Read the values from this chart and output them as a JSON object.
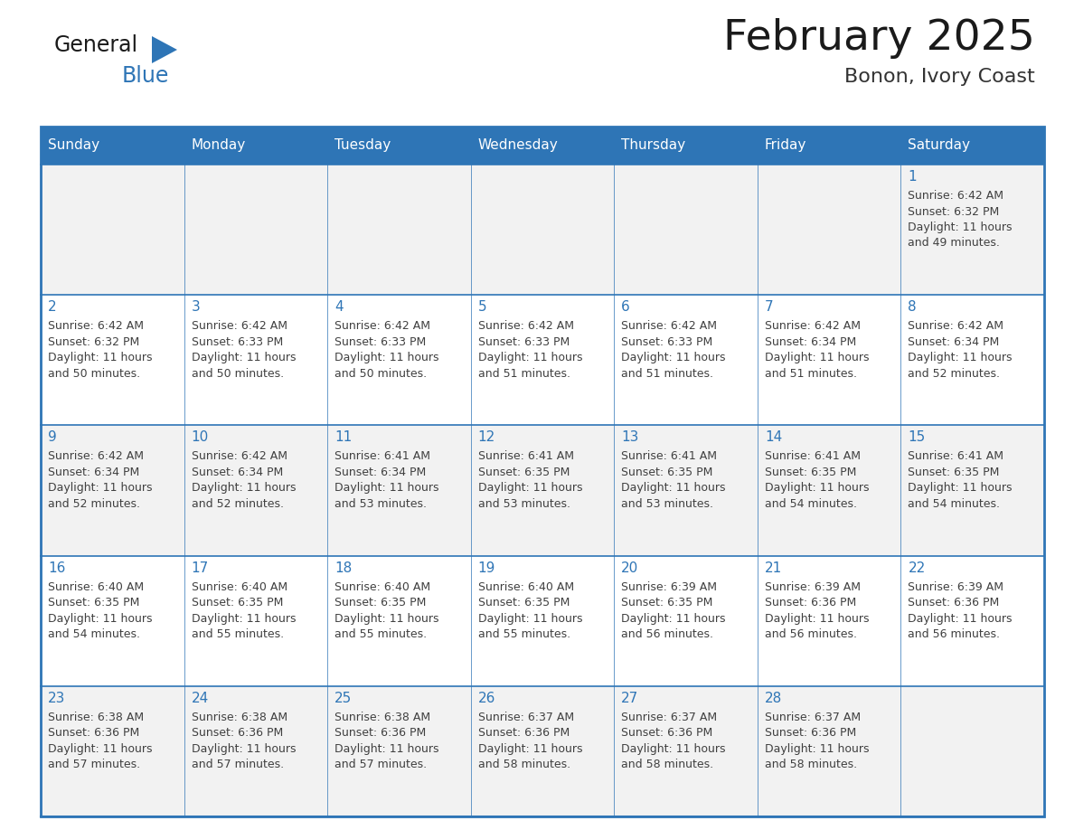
{
  "title": "February 2025",
  "subtitle": "Bonon, Ivory Coast",
  "days_of_week": [
    "Sunday",
    "Monday",
    "Tuesday",
    "Wednesday",
    "Thursday",
    "Friday",
    "Saturday"
  ],
  "header_bg": "#2E75B6",
  "header_text_color": "#FFFFFF",
  "cell_bg_light": "#F2F2F2",
  "cell_bg_white": "#FFFFFF",
  "border_color": "#2E75B6",
  "title_color": "#1a1a1a",
  "subtitle_color": "#333333",
  "day_num_color": "#2E75B6",
  "cell_text_color": "#404040",
  "logo_general_color": "#1a1a1a",
  "logo_blue_color": "#2E75B6",
  "calendar_data": [
    [
      null,
      null,
      null,
      null,
      null,
      null,
      {
        "day": 1,
        "sunrise": "6:42 AM",
        "sunset": "6:32 PM",
        "daylight_hours": 11,
        "daylight_minutes": 49
      }
    ],
    [
      {
        "day": 2,
        "sunrise": "6:42 AM",
        "sunset": "6:32 PM",
        "daylight_hours": 11,
        "daylight_minutes": 50
      },
      {
        "day": 3,
        "sunrise": "6:42 AM",
        "sunset": "6:33 PM",
        "daylight_hours": 11,
        "daylight_minutes": 50
      },
      {
        "day": 4,
        "sunrise": "6:42 AM",
        "sunset": "6:33 PM",
        "daylight_hours": 11,
        "daylight_minutes": 50
      },
      {
        "day": 5,
        "sunrise": "6:42 AM",
        "sunset": "6:33 PM",
        "daylight_hours": 11,
        "daylight_minutes": 51
      },
      {
        "day": 6,
        "sunrise": "6:42 AM",
        "sunset": "6:33 PM",
        "daylight_hours": 11,
        "daylight_minutes": 51
      },
      {
        "day": 7,
        "sunrise": "6:42 AM",
        "sunset": "6:34 PM",
        "daylight_hours": 11,
        "daylight_minutes": 51
      },
      {
        "day": 8,
        "sunrise": "6:42 AM",
        "sunset": "6:34 PM",
        "daylight_hours": 11,
        "daylight_minutes": 52
      }
    ],
    [
      {
        "day": 9,
        "sunrise": "6:42 AM",
        "sunset": "6:34 PM",
        "daylight_hours": 11,
        "daylight_minutes": 52
      },
      {
        "day": 10,
        "sunrise": "6:42 AM",
        "sunset": "6:34 PM",
        "daylight_hours": 11,
        "daylight_minutes": 52
      },
      {
        "day": 11,
        "sunrise": "6:41 AM",
        "sunset": "6:34 PM",
        "daylight_hours": 11,
        "daylight_minutes": 53
      },
      {
        "day": 12,
        "sunrise": "6:41 AM",
        "sunset": "6:35 PM",
        "daylight_hours": 11,
        "daylight_minutes": 53
      },
      {
        "day": 13,
        "sunrise": "6:41 AM",
        "sunset": "6:35 PM",
        "daylight_hours": 11,
        "daylight_minutes": 53
      },
      {
        "day": 14,
        "sunrise": "6:41 AM",
        "sunset": "6:35 PM",
        "daylight_hours": 11,
        "daylight_minutes": 54
      },
      {
        "day": 15,
        "sunrise": "6:41 AM",
        "sunset": "6:35 PM",
        "daylight_hours": 11,
        "daylight_minutes": 54
      }
    ],
    [
      {
        "day": 16,
        "sunrise": "6:40 AM",
        "sunset": "6:35 PM",
        "daylight_hours": 11,
        "daylight_minutes": 54
      },
      {
        "day": 17,
        "sunrise": "6:40 AM",
        "sunset": "6:35 PM",
        "daylight_hours": 11,
        "daylight_minutes": 55
      },
      {
        "day": 18,
        "sunrise": "6:40 AM",
        "sunset": "6:35 PM",
        "daylight_hours": 11,
        "daylight_minutes": 55
      },
      {
        "day": 19,
        "sunrise": "6:40 AM",
        "sunset": "6:35 PM",
        "daylight_hours": 11,
        "daylight_minutes": 55
      },
      {
        "day": 20,
        "sunrise": "6:39 AM",
        "sunset": "6:35 PM",
        "daylight_hours": 11,
        "daylight_minutes": 56
      },
      {
        "day": 21,
        "sunrise": "6:39 AM",
        "sunset": "6:36 PM",
        "daylight_hours": 11,
        "daylight_minutes": 56
      },
      {
        "day": 22,
        "sunrise": "6:39 AM",
        "sunset": "6:36 PM",
        "daylight_hours": 11,
        "daylight_minutes": 56
      }
    ],
    [
      {
        "day": 23,
        "sunrise": "6:38 AM",
        "sunset": "6:36 PM",
        "daylight_hours": 11,
        "daylight_minutes": 57
      },
      {
        "day": 24,
        "sunrise": "6:38 AM",
        "sunset": "6:36 PM",
        "daylight_hours": 11,
        "daylight_minutes": 57
      },
      {
        "day": 25,
        "sunrise": "6:38 AM",
        "sunset": "6:36 PM",
        "daylight_hours": 11,
        "daylight_minutes": 57
      },
      {
        "day": 26,
        "sunrise": "6:37 AM",
        "sunset": "6:36 PM",
        "daylight_hours": 11,
        "daylight_minutes": 58
      },
      {
        "day": 27,
        "sunrise": "6:37 AM",
        "sunset": "6:36 PM",
        "daylight_hours": 11,
        "daylight_minutes": 58
      },
      {
        "day": 28,
        "sunrise": "6:37 AM",
        "sunset": "6:36 PM",
        "daylight_hours": 11,
        "daylight_minutes": 58
      },
      null
    ]
  ]
}
